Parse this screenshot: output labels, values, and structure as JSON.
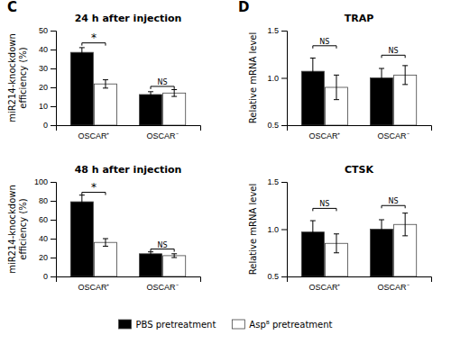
{
  "chart_data": [
    {
      "type": "bar",
      "title": "24 h after injection",
      "ylabel": "miR214-knockdown\nefficiency (%)",
      "categories": [
        "OSCAR⁺",
        "OSCAR⁻"
      ],
      "series": [
        {
          "name": "PBS pretreatment",
          "color": "#000000",
          "values": [
            38.5,
            16.2
          ],
          "errors": [
            2.5,
            1.5
          ]
        },
        {
          "name": "Asp⁸ pretreatment",
          "color": "#ffffff",
          "values": [
            21.8,
            17.0
          ],
          "errors": [
            2.2,
            1.8
          ]
        }
      ],
      "ylim": [
        0,
        50
      ],
      "yticks": [
        0,
        10,
        20,
        30,
        40,
        50
      ],
      "grid": false,
      "legend": "bottom",
      "annotations": [
        {
          "text": "C"
        },
        {
          "text": "*",
          "x": "OSCAR⁺",
          "y": 43.5
        },
        {
          "text": "NS",
          "x": "OSCAR⁻",
          "y": 20.5
        }
      ]
    },
    {
      "type": "bar",
      "title": "48 h after injection",
      "ylabel": "miR214-knockdown\nefficiency (%)",
      "categories": [
        "OSCAR⁺",
        "OSCAR⁻"
      ],
      "series": [
        {
          "name": "PBS pretreatment",
          "color": "#000000",
          "values": [
            79.0,
            24.0
          ],
          "errors": [
            7.0,
            2.0
          ]
        },
        {
          "name": "Asp⁸ pretreatment",
          "color": "#ffffff",
          "values": [
            36.0,
            22.0
          ],
          "errors": [
            4.0,
            2.0
          ]
        }
      ],
      "ylim": [
        0,
        100
      ],
      "yticks": [
        0,
        20,
        40,
        60,
        80,
        100
      ],
      "grid": false,
      "annotations": [
        {
          "text": "*",
          "x": "OSCAR⁺",
          "y": 89.0
        },
        {
          "text": "NS",
          "x": "OSCAR⁻",
          "y": 29.0
        }
      ]
    },
    {
      "type": "bar",
      "title": "TRAP",
      "ylabel": "Relative mRNA level",
      "categories": [
        "OSCAR⁺",
        "OSCAR⁻"
      ],
      "series": [
        {
          "name": "PBS pretreatment",
          "color": "#000000",
          "values": [
            1.07,
            1.0
          ],
          "errors": [
            0.14,
            0.1
          ]
        },
        {
          "name": "Asp⁸ pretreatment",
          "color": "#ffffff",
          "values": [
            0.9,
            1.03
          ],
          "errors": [
            0.13,
            0.1
          ]
        }
      ],
      "ylim": [
        0.5,
        1.5
      ],
      "yticks": [
        0.5,
        {
          "value": 1.0,
          "label": "1.0"
        },
        1.5
      ],
      "grid": false,
      "annotations": [
        {
          "text": "D"
        },
        {
          "text": "NS",
          "x": "OSCAR⁺",
          "y": 1.34
        },
        {
          "text": "NS",
          "x": "OSCAR⁻",
          "y": 1.24
        }
      ]
    },
    {
      "type": "bar",
      "title": "CTSK",
      "ylabel": "Relative mRNA level",
      "categories": [
        "OSCAR⁺",
        "OSCAR⁻"
      ],
      "series": [
        {
          "name": "PBS pretreatment",
          "color": "#000000",
          "values": [
            0.97,
            1.0
          ],
          "errors": [
            0.12,
            0.1
          ]
        },
        {
          "name": "Asp⁸ pretreatment",
          "color": "#ffffff",
          "values": [
            0.85,
            1.05
          ],
          "errors": [
            0.1,
            0.12
          ]
        }
      ],
      "ylim": [
        0.5,
        1.5
      ],
      "yticks": [
        0.5,
        {
          "value": 1.0,
          "label": "1.0"
        },
        1.5
      ],
      "grid": false,
      "annotations": [
        {
          "text": "NS",
          "x": "OSCAR⁺",
          "y": 1.22
        },
        {
          "text": "NS",
          "x": "OSCAR⁻",
          "y": 1.25
        }
      ]
    }
  ]
}
